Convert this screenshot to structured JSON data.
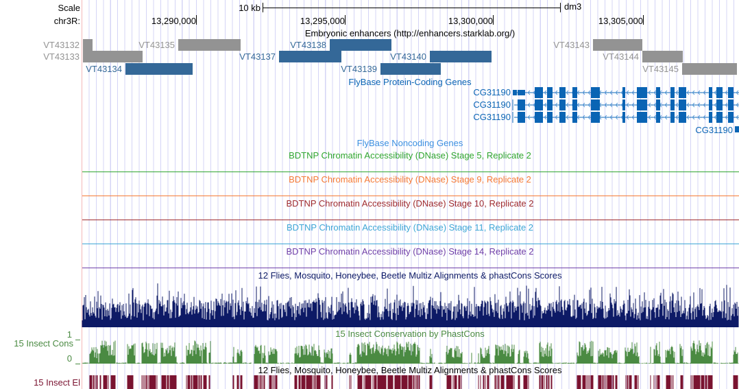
{
  "ruler": {
    "scale_label": "Scale",
    "scale_bar_label": "10 kb",
    "assembly": "dm3",
    "chrom_label": "chr3R:",
    "positions": [
      "13,290,000",
      "13,295,000",
      "13,300,000",
      "13,305,000"
    ]
  },
  "enhancers": {
    "title": "Embryonic enhancers (http://enhancers.starklab.org/)",
    "items": [
      {
        "name": "VT43132",
        "color": "gray"
      },
      {
        "name": "VT43135",
        "color": "gray"
      },
      {
        "name": "VT43138",
        "color": "blue"
      },
      {
        "name": "VT43143",
        "color": "gray"
      },
      {
        "name": "VT43133",
        "color": "gray"
      },
      {
        "name": "VT43137",
        "color": "blue"
      },
      {
        "name": "VT43140",
        "color": "blue"
      },
      {
        "name": "VT43144",
        "color": "gray"
      },
      {
        "name": "VT43134",
        "color": "blue"
      },
      {
        "name": "VT43139",
        "color": "blue"
      },
      {
        "name": "VT43145",
        "color": "gray"
      }
    ]
  },
  "protein_genes": {
    "title": "FlyBase Protein-Coding Genes",
    "transcripts": [
      "CG31190",
      "CG31190",
      "CG31190",
      "CG31190"
    ]
  },
  "noncoding_genes": {
    "title": "FlyBase Noncoding Genes"
  },
  "dnase_tracks": [
    {
      "title": "BDTNP Chromatin Accessibility (DNase) Stage 5, Replicate 2",
      "color": "#2fa52f"
    },
    {
      "title": "BDTNP Chromatin Accessibility (DNase) Stage 9, Replicate 2",
      "color": "#f57a35"
    },
    {
      "title": "BDTNP Chromatin Accessibility (DNase) Stage 10, Replicate 2",
      "color": "#9e2a2e"
    },
    {
      "title": "BDTNP Chromatin Accessibility (DNase) Stage 11, Replicate 2",
      "color": "#3ea6d6"
    },
    {
      "title": "BDTNP Chromatin Accessibility (DNase) Stage 14, Replicate 2",
      "color": "#7040a8"
    }
  ],
  "multiz": {
    "title": "12 Flies, Mosquito, Honeybee, Beetle Multiz Alignments & phastCons Scores",
    "color": "#0d1a66"
  },
  "phastcons": {
    "title": "15 Insect Conservation by PhastCons",
    "side_label": "15 Insect Cons",
    "y_max": "1",
    "y_min": "0",
    "color": "#4a8a42"
  },
  "elements": {
    "title": "12 Flies, Mosquito, Honeybee, Beetle Multiz Alignments & phastCons Scores",
    "side_label": "15 Insect El",
    "color": "#7a1330"
  }
}
